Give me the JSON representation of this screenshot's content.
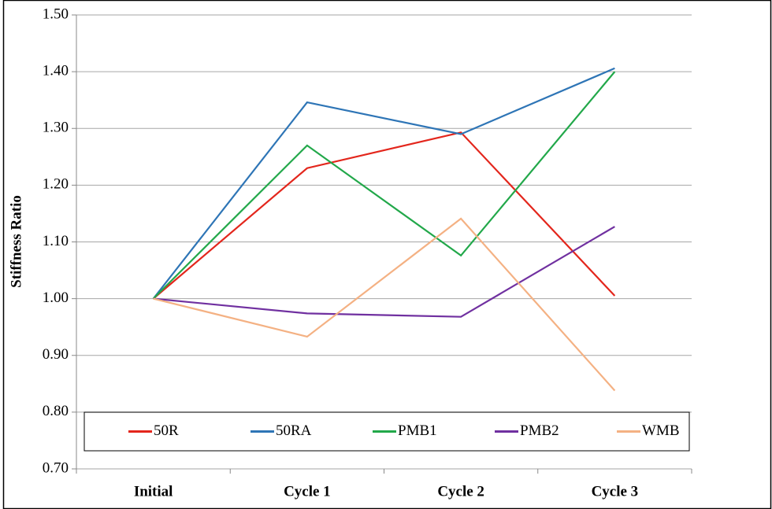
{
  "chart_data": {
    "type": "line",
    "y_label": "Stiffness Ratio",
    "categories": [
      "Initial",
      "Cycle 1",
      "Cycle 2",
      "Cycle 3"
    ],
    "series": [
      {
        "name": "50R",
        "color": "#e3261c",
        "values": [
          1.0,
          1.23,
          1.293,
          1.005
        ]
      },
      {
        "name": "50RA",
        "color": "#2e75b6",
        "values": [
          1.0,
          1.346,
          1.29,
          1.406
        ]
      },
      {
        "name": "PMB1",
        "color": "#22a84a",
        "values": [
          1.0,
          1.27,
          1.076,
          1.4
        ]
      },
      {
        "name": "PMB2",
        "color": "#7030a0",
        "values": [
          1.0,
          0.974,
          0.968,
          1.127
        ]
      },
      {
        "name": "WMB",
        "color": "#f4b183",
        "values": [
          1.0,
          0.933,
          1.141,
          0.838
        ]
      }
    ],
    "ylim": [
      0.7,
      1.5
    ],
    "yticks": [
      {
        "value": 0.7,
        "label": "0.70"
      },
      {
        "value": 0.8,
        "label": "0.80"
      },
      {
        "value": 0.9,
        "label": "0.90"
      },
      {
        "value": 1.0,
        "label": "1.00"
      },
      {
        "value": 1.1,
        "label": "1.10"
      },
      {
        "value": 1.2,
        "label": "1.20"
      },
      {
        "value": 1.3,
        "label": "1.30"
      },
      {
        "value": 1.4,
        "label": "1.40"
      },
      {
        "value": 1.5,
        "label": "1.50"
      }
    ],
    "grid": true,
    "legend": "bottom"
  }
}
